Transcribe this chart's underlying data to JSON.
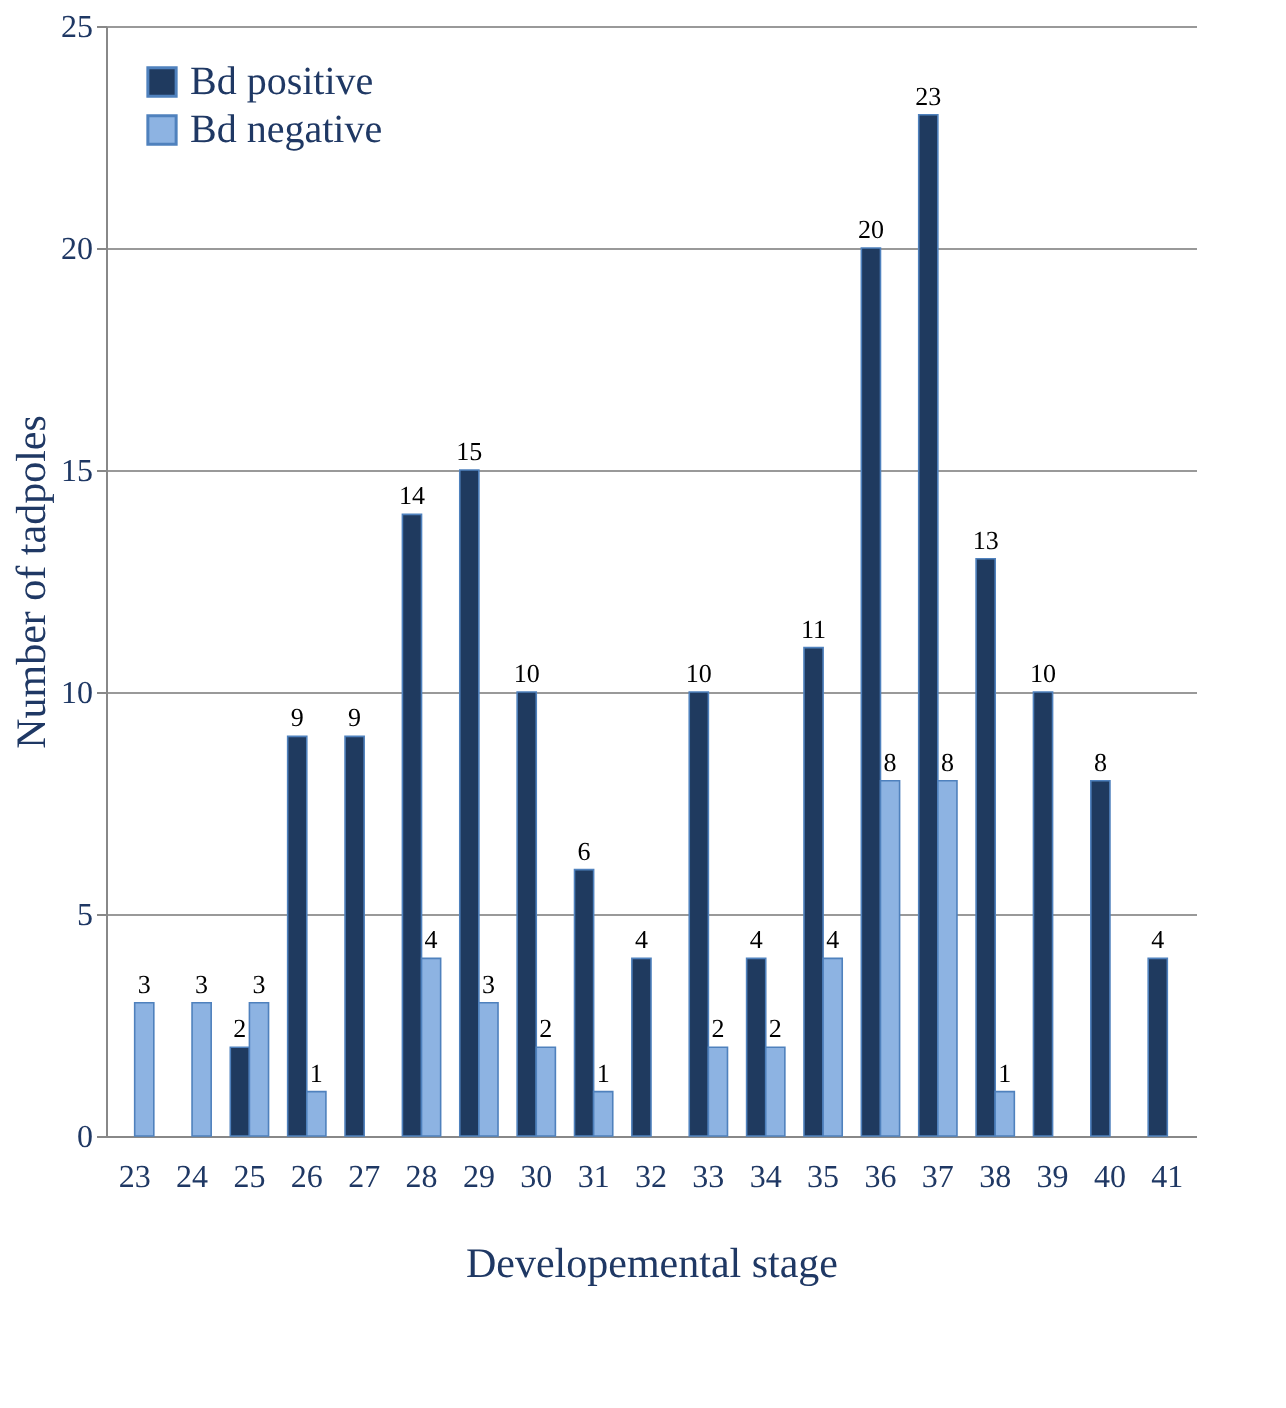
{
  "chart_data": {
    "type": "bar",
    "xlabel": "Developemental stage",
    "ylabel": "Number of tadpoles",
    "categories": [
      "23",
      "24",
      "25",
      "26",
      "27",
      "28",
      "29",
      "30",
      "31",
      "32",
      "33",
      "34",
      "35",
      "36",
      "37",
      "38",
      "39",
      "40",
      "41"
    ],
    "series": [
      {
        "name": "Bd positive",
        "color": "#1f3a5f",
        "values": [
          null,
          null,
          2,
          9,
          9,
          14,
          15,
          10,
          6,
          4,
          10,
          4,
          11,
          20,
          23,
          13,
          10,
          8,
          4
        ]
      },
      {
        "name": "Bd negative",
        "color": "#8db3e2",
        "values": [
          3,
          3,
          3,
          1,
          null,
          4,
          3,
          2,
          1,
          null,
          2,
          2,
          4,
          8,
          8,
          1,
          null,
          null,
          null
        ]
      }
    ],
    "ylim": [
      0,
      25
    ],
    "yticks": [
      0,
      5,
      10,
      15,
      20,
      25
    ],
    "grid": "y",
    "legend": "top left",
    "data_labels": true
  }
}
